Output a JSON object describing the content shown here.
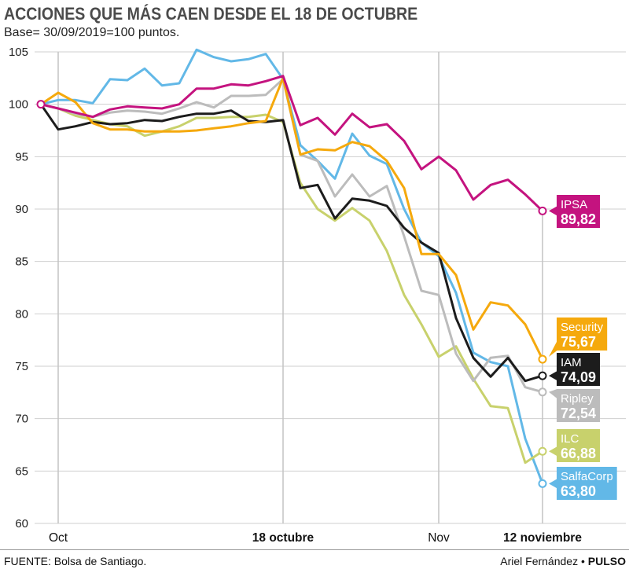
{
  "chart_data": {
    "type": "line",
    "title": "ACCIONES QUE MÁS CAEN DESDE EL 18 DE OCTUBRE",
    "subtitle": "Base= 30/09/2019=100 puntos.",
    "xlabel": "",
    "ylabel": "",
    "ylim": [
      60,
      105
    ],
    "yticks": [
      105,
      100,
      95,
      90,
      85,
      80,
      75,
      70,
      65,
      60
    ],
    "grid": true,
    "legend": "right",
    "x": [
      "2019-09-30",
      "2019-10-01",
      "2019-10-02",
      "2019-10-03",
      "2019-10-04",
      "2019-10-07",
      "2019-10-08",
      "2019-10-09",
      "2019-10-10",
      "2019-10-11",
      "2019-10-14",
      "2019-10-15",
      "2019-10-16",
      "2019-10-17",
      "2019-10-18",
      "2019-10-21",
      "2019-10-22",
      "2019-10-23",
      "2019-10-24",
      "2019-10-25",
      "2019-10-28",
      "2019-10-29",
      "2019-10-30",
      "2019-11-04",
      "2019-11-05",
      "2019-11-06",
      "2019-11-07",
      "2019-11-08",
      "2019-11-11",
      "2019-11-12"
    ],
    "xticks": [
      {
        "x": "2019-10-01",
        "label": "Oct",
        "bold": false
      },
      {
        "x": "2019-10-18",
        "label": "18 octubre",
        "bold": true
      },
      {
        "x": "2019-11-04",
        "label": "Nov",
        "bold": false
      },
      {
        "x": "2019-11-12",
        "label": "12 noviembre",
        "bold": true
      }
    ],
    "series": [
      {
        "name": "IPSA",
        "end_label": "89,82",
        "color": "#c4137f",
        "values": [
          100,
          99.6,
          99.2,
          98.8,
          99.5,
          99.8,
          99.7,
          99.6,
          100.0,
          101.5,
          101.5,
          101.9,
          101.8,
          102.2,
          102.7,
          98.0,
          98.7,
          97.1,
          99.1,
          97.8,
          98.1,
          96.5,
          93.8,
          95.0,
          93.7,
          90.9,
          92.3,
          92.8,
          91.4,
          89.82
        ]
      },
      {
        "name": "Security",
        "end_label": "75,67",
        "color": "#f5a90d",
        "values": [
          100,
          101.1,
          100.2,
          98.2,
          97.6,
          97.6,
          97.4,
          97.4,
          97.4,
          97.5,
          97.7,
          97.9,
          98.2,
          98.4,
          102.5,
          95.2,
          95.7,
          95.6,
          96.4,
          96.0,
          94.6,
          92.0,
          85.7,
          85.7,
          83.7,
          78.5,
          81.1,
          80.8,
          79.0,
          75.67
        ]
      },
      {
        "name": "IAM",
        "end_label": "74,09",
        "color": "#1c1c1c",
        "values": [
          100,
          97.6,
          97.9,
          98.3,
          98.1,
          98.2,
          98.5,
          98.4,
          98.8,
          99.1,
          99.1,
          99.4,
          98.4,
          98.3,
          98.5,
          92.0,
          92.3,
          89.1,
          91.0,
          90.8,
          90.3,
          88.2,
          86.8,
          85.8,
          79.6,
          75.8,
          74.0,
          75.8,
          73.6,
          74.09
        ]
      },
      {
        "name": "Ripley",
        "end_label": "72,54",
        "color": "#bcbcbc",
        "values": [
          100,
          99.6,
          99.1,
          98.8,
          99.2,
          99.4,
          99.3,
          99.1,
          99.6,
          100.2,
          99.7,
          100.8,
          100.8,
          100.9,
          102.4,
          95.2,
          94.6,
          91.2,
          93.3,
          91.2,
          92.2,
          87.4,
          82.2,
          81.8,
          76.2,
          73.6,
          75.8,
          76.0,
          73.0,
          72.54
        ]
      },
      {
        "name": "ILC",
        "end_label": "66,88",
        "color": "#c8d16c",
        "values": [
          100,
          99.6,
          98.9,
          98.5,
          98.1,
          97.9,
          97.0,
          97.4,
          97.9,
          98.7,
          98.7,
          98.8,
          98.8,
          99.0,
          98.3,
          92.5,
          90.0,
          88.9,
          90.1,
          88.9,
          86.0,
          81.8,
          79.0,
          75.9,
          76.9,
          73.8,
          71.2,
          71.0,
          65.8,
          66.88
        ]
      },
      {
        "name": "SalfaCorp",
        "end_label": "63,80",
        "color": "#62b8e7",
        "values": [
          100,
          100.4,
          100.4,
          100.1,
          102.4,
          102.3,
          103.4,
          101.8,
          102.0,
          105.2,
          104.5,
          104.1,
          104.3,
          104.8,
          102.4,
          96.1,
          94.6,
          92.9,
          97.2,
          95.1,
          94.3,
          90.0,
          86.8,
          85.5,
          82.0,
          76.3,
          75.4,
          75.0,
          68.1,
          63.8
        ]
      }
    ]
  },
  "footer": {
    "source": "FUENTE: Bolsa de Santiago.",
    "author": "Ariel Fernández",
    "separator": "•",
    "brand": "PULSO"
  }
}
